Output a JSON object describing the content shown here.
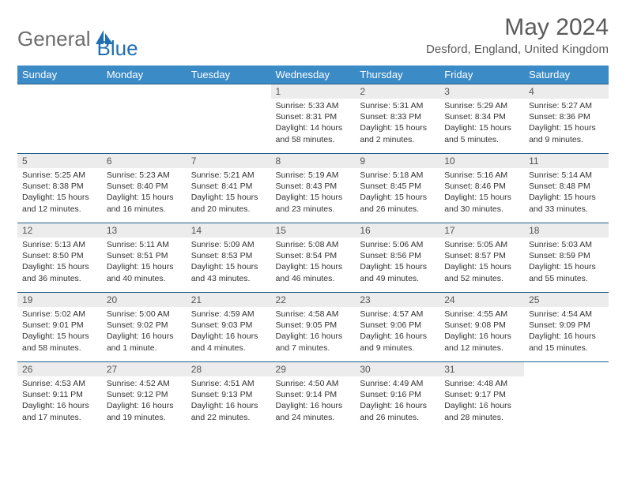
{
  "brand": {
    "part1": "General",
    "part2": "Blue"
  },
  "title": "May 2024",
  "location": "Desford, England, United Kingdom",
  "colors": {
    "header_bg": "#3b8bc7",
    "header_text": "#ffffff",
    "border": "#1f5f8b",
    "daynum_bg": "#ececec",
    "body_text": "#333333",
    "brand_gray": "#6c6c6c",
    "brand_blue": "#1f6fb2"
  },
  "dayNames": [
    "Sunday",
    "Monday",
    "Tuesday",
    "Wednesday",
    "Thursday",
    "Friday",
    "Saturday"
  ],
  "weeks": [
    [
      null,
      null,
      null,
      {
        "n": "1",
        "sunrise": "5:33 AM",
        "sunset": "8:31 PM",
        "daylight": "14 hours and 58 minutes."
      },
      {
        "n": "2",
        "sunrise": "5:31 AM",
        "sunset": "8:33 PM",
        "daylight": "15 hours and 2 minutes."
      },
      {
        "n": "3",
        "sunrise": "5:29 AM",
        "sunset": "8:34 PM",
        "daylight": "15 hours and 5 minutes."
      },
      {
        "n": "4",
        "sunrise": "5:27 AM",
        "sunset": "8:36 PM",
        "daylight": "15 hours and 9 minutes."
      }
    ],
    [
      {
        "n": "5",
        "sunrise": "5:25 AM",
        "sunset": "8:38 PM",
        "daylight": "15 hours and 12 minutes."
      },
      {
        "n": "6",
        "sunrise": "5:23 AM",
        "sunset": "8:40 PM",
        "daylight": "15 hours and 16 minutes."
      },
      {
        "n": "7",
        "sunrise": "5:21 AM",
        "sunset": "8:41 PM",
        "daylight": "15 hours and 20 minutes."
      },
      {
        "n": "8",
        "sunrise": "5:19 AM",
        "sunset": "8:43 PM",
        "daylight": "15 hours and 23 minutes."
      },
      {
        "n": "9",
        "sunrise": "5:18 AM",
        "sunset": "8:45 PM",
        "daylight": "15 hours and 26 minutes."
      },
      {
        "n": "10",
        "sunrise": "5:16 AM",
        "sunset": "8:46 PM",
        "daylight": "15 hours and 30 minutes."
      },
      {
        "n": "11",
        "sunrise": "5:14 AM",
        "sunset": "8:48 PM",
        "daylight": "15 hours and 33 minutes."
      }
    ],
    [
      {
        "n": "12",
        "sunrise": "5:13 AM",
        "sunset": "8:50 PM",
        "daylight": "15 hours and 36 minutes."
      },
      {
        "n": "13",
        "sunrise": "5:11 AM",
        "sunset": "8:51 PM",
        "daylight": "15 hours and 40 minutes."
      },
      {
        "n": "14",
        "sunrise": "5:09 AM",
        "sunset": "8:53 PM",
        "daylight": "15 hours and 43 minutes."
      },
      {
        "n": "15",
        "sunrise": "5:08 AM",
        "sunset": "8:54 PM",
        "daylight": "15 hours and 46 minutes."
      },
      {
        "n": "16",
        "sunrise": "5:06 AM",
        "sunset": "8:56 PM",
        "daylight": "15 hours and 49 minutes."
      },
      {
        "n": "17",
        "sunrise": "5:05 AM",
        "sunset": "8:57 PM",
        "daylight": "15 hours and 52 minutes."
      },
      {
        "n": "18",
        "sunrise": "5:03 AM",
        "sunset": "8:59 PM",
        "daylight": "15 hours and 55 minutes."
      }
    ],
    [
      {
        "n": "19",
        "sunrise": "5:02 AM",
        "sunset": "9:01 PM",
        "daylight": "15 hours and 58 minutes."
      },
      {
        "n": "20",
        "sunrise": "5:00 AM",
        "sunset": "9:02 PM",
        "daylight": "16 hours and 1 minute."
      },
      {
        "n": "21",
        "sunrise": "4:59 AM",
        "sunset": "9:03 PM",
        "daylight": "16 hours and 4 minutes."
      },
      {
        "n": "22",
        "sunrise": "4:58 AM",
        "sunset": "9:05 PM",
        "daylight": "16 hours and 7 minutes."
      },
      {
        "n": "23",
        "sunrise": "4:57 AM",
        "sunset": "9:06 PM",
        "daylight": "16 hours and 9 minutes."
      },
      {
        "n": "24",
        "sunrise": "4:55 AM",
        "sunset": "9:08 PM",
        "daylight": "16 hours and 12 minutes."
      },
      {
        "n": "25",
        "sunrise": "4:54 AM",
        "sunset": "9:09 PM",
        "daylight": "16 hours and 15 minutes."
      }
    ],
    [
      {
        "n": "26",
        "sunrise": "4:53 AM",
        "sunset": "9:11 PM",
        "daylight": "16 hours and 17 minutes."
      },
      {
        "n": "27",
        "sunrise": "4:52 AM",
        "sunset": "9:12 PM",
        "daylight": "16 hours and 19 minutes."
      },
      {
        "n": "28",
        "sunrise": "4:51 AM",
        "sunset": "9:13 PM",
        "daylight": "16 hours and 22 minutes."
      },
      {
        "n": "29",
        "sunrise": "4:50 AM",
        "sunset": "9:14 PM",
        "daylight": "16 hours and 24 minutes."
      },
      {
        "n": "30",
        "sunrise": "4:49 AM",
        "sunset": "9:16 PM",
        "daylight": "16 hours and 26 minutes."
      },
      {
        "n": "31",
        "sunrise": "4:48 AM",
        "sunset": "9:17 PM",
        "daylight": "16 hours and 28 minutes."
      },
      null
    ]
  ],
  "labels": {
    "sunrise": "Sunrise:",
    "sunset": "Sunset:",
    "daylight": "Daylight:"
  }
}
